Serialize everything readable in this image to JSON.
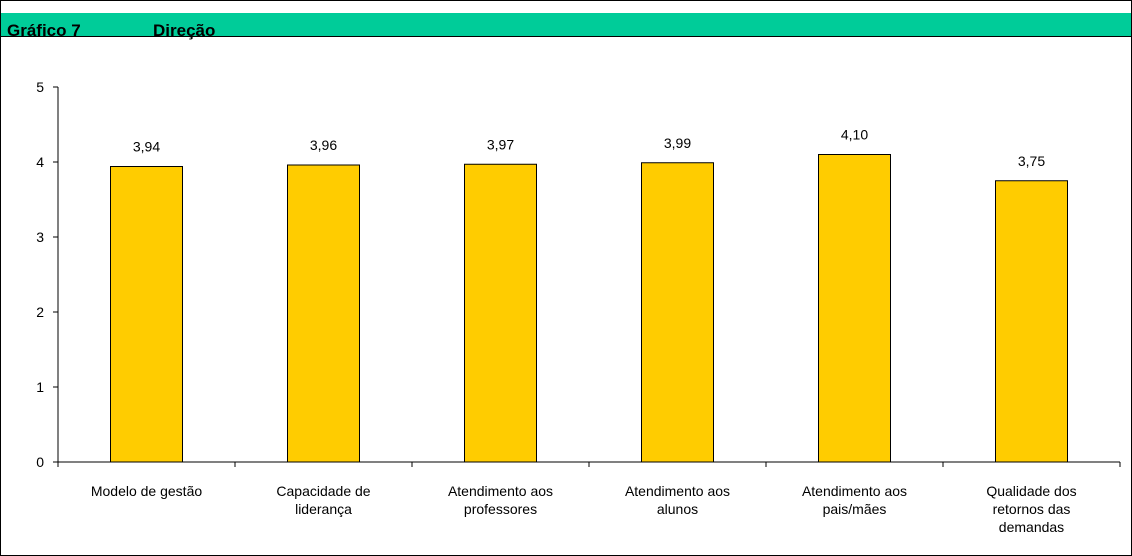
{
  "header": {
    "number": "Gráfico 7",
    "title": "Direção"
  },
  "colors": {
    "header_bg": "#00cc99",
    "bar_fill": "#ffcc00",
    "bar_stroke": "#000000"
  },
  "chart_data": {
    "type": "bar",
    "title": "Direção",
    "categories": [
      [
        "Modelo de gestão"
      ],
      [
        "Capacidade de",
        "liderança"
      ],
      [
        "Atendimento aos",
        "professores"
      ],
      [
        "Atendimento aos",
        "alunos"
      ],
      [
        "Atendimento aos",
        "pais/mães"
      ],
      [
        "Qualidade dos",
        "retornos das",
        "demandas"
      ]
    ],
    "values": [
      3.94,
      3.96,
      3.97,
      3.99,
      4.1,
      3.75
    ],
    "value_labels": [
      "3,94",
      "3,96",
      "3,97",
      "3,99",
      "4,10",
      "3,75"
    ],
    "ylim": [
      0,
      5
    ],
    "yticks": [
      "0",
      "1",
      "2",
      "3",
      "4",
      "5"
    ],
    "xlabel": "",
    "ylabel": "",
    "grid": false,
    "legend": "none"
  }
}
